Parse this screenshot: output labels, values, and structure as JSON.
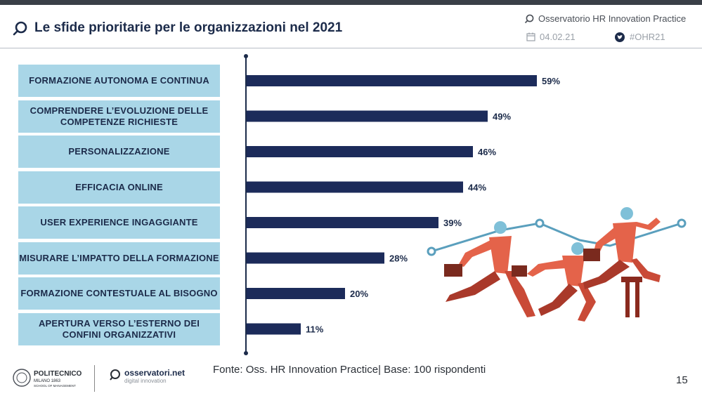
{
  "header": {
    "title": "Le sfide prioritarie per le organizzazioni nel 2021",
    "org": "Osservatorio HR Innovation Practice",
    "date": "04.02.21",
    "hashtag": "#OHR21"
  },
  "chart_data": {
    "type": "bar",
    "orientation": "horizontal",
    "categories": [
      "FORMAZIONE AUTONOMA E CONTINUA",
      "COMPRENDERE L’EVOLUZIONE DELLE COMPETENZE RICHIESTE",
      "PERSONALIZZAZIONE",
      "EFFICACIA ONLINE",
      "USER EXPERIENCE INGAGGIANTE",
      "MISURARE L’IMPATTO DELLA FORMAZIONE",
      "FORMAZIONE CONTESTUALE AL BISOGNO",
      "APERTURA VERSO L’ESTERNO DEI CONFINI ORGANIZZATIVI"
    ],
    "values": [
      59,
      49,
      46,
      44,
      39,
      28,
      20,
      11
    ],
    "value_labels": [
      "59%",
      "49%",
      "46%",
      "44%",
      "39%",
      "28%",
      "20%",
      "11%"
    ],
    "unit": "%",
    "bar_color": "#1c2b5a",
    "category_box_color": "#a9d6e7",
    "xlim": [
      0,
      70
    ]
  },
  "footer": {
    "source": "Fonte: Oss. HR Innovation Practice| Base: 100 rispondenti",
    "page": "15",
    "logo1_name": "POLITECNICO",
    "logo1_sub": "MILANO 1863",
    "logo1_school": "SCHOOL OF MANAGEMENT",
    "logo2_name": "osservatori.net",
    "logo2_sub": "digital innovation"
  }
}
